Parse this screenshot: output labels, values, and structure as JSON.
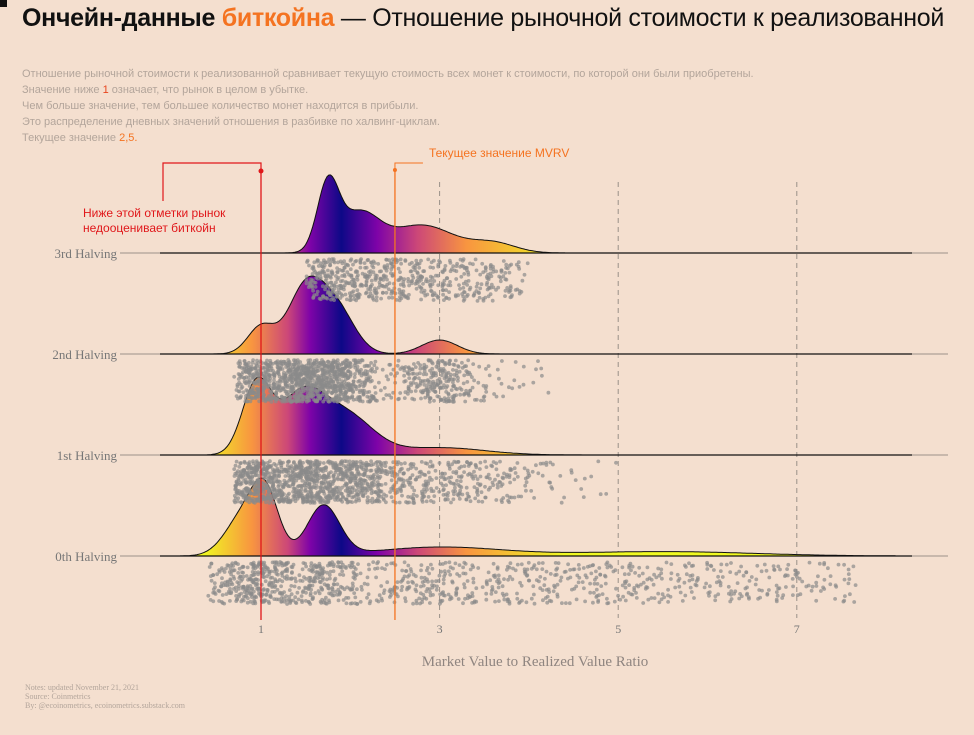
{
  "header": {
    "title_part1": "Ончейн-данные",
    "title_accent": "биткойна",
    "title_rest": "— Отношение рыночной стоимости к реализованной"
  },
  "description": {
    "line1": "Отношение рыночной стоимости к реализованной сравнивает текущую стоимость всех монет к стоимости, по которой они были приобретены.",
    "line2_a": "Значение ниже",
    "line2_hl": "1",
    "line2_b": "означает, что рынок в целом в убытке.",
    "line3": "Чем больше значение, тем большее количество монет находится в прибыли.",
    "line4": "Это распределение дневных значений отношения в разбивке по халвинг-циклам.",
    "line5_a": "Текущее значение",
    "line5_hl": "2,5."
  },
  "footer": {
    "notes": "Notes: updated November 21, 2021",
    "source": "Source: Coinmetrics",
    "by": "By: @ecoinometrics, ecoinometrics.substack.com"
  },
  "colors": {
    "background": "#f4dfcf",
    "red": "#e0171a",
    "orange": "#f47321",
    "dots": "#8a8a8a",
    "gradient": [
      "#f0f921",
      "#f89540",
      "#cc4778",
      "#7e03a8",
      "#0d0887"
    ]
  },
  "chart_data": {
    "type": "ridgeline",
    "xlabel": "Market Value to Realized Value Ratio",
    "xlim": [
      0.45,
      8.2
    ],
    "xticks": [
      1,
      3,
      5,
      7
    ],
    "gridlines_dashed_at": [
      3,
      5,
      7
    ],
    "series": [
      {
        "name": "3rd Halving",
        "x_range": [
          1.5,
          4.0
        ],
        "peaks": [
          {
            "x": 1.75,
            "h": 1.0,
            "s": 0.12
          },
          {
            "x": 2.1,
            "h": 0.58,
            "s": 0.22
          },
          {
            "x": 2.8,
            "h": 0.42,
            "s": 0.35
          },
          {
            "x": 3.6,
            "h": 0.15,
            "s": 0.25
          }
        ],
        "dots": 600
      },
      {
        "name": "2nd Halving",
        "x_range": [
          0.7,
          4.3
        ],
        "peaks": [
          {
            "x": 1.0,
            "h": 0.35,
            "s": 0.15
          },
          {
            "x": 1.5,
            "h": 0.85,
            "s": 0.2
          },
          {
            "x": 1.85,
            "h": 0.55,
            "s": 0.2
          },
          {
            "x": 3.0,
            "h": 0.18,
            "s": 0.2
          }
        ],
        "dots": 1400
      },
      {
        "name": "1st Halving",
        "x_range": [
          0.7,
          5.0
        ],
        "peaks": [
          {
            "x": 0.95,
            "h": 0.75,
            "s": 0.16
          },
          {
            "x": 1.45,
            "h": 0.62,
            "s": 0.25
          },
          {
            "x": 1.95,
            "h": 0.42,
            "s": 0.3
          },
          {
            "x": 3.0,
            "h": 0.08,
            "s": 0.5
          }
        ],
        "dots": 1400
      },
      {
        "name": "0th Halving",
        "x_range": [
          0.4,
          7.7
        ],
        "peaks": [
          {
            "x": 0.8,
            "h": 0.35,
            "s": 0.2
          },
          {
            "x": 1.05,
            "h": 0.52,
            "s": 0.15
          },
          {
            "x": 1.7,
            "h": 0.45,
            "s": 0.18
          },
          {
            "x": 3.0,
            "h": 0.08,
            "s": 0.7
          },
          {
            "x": 5.5,
            "h": 0.04,
            "s": 1.0
          }
        ],
        "dots": 1100
      }
    ],
    "reference_lines": [
      {
        "x": 1,
        "color": "#e0171a",
        "label_line1": "Ниже этой отметки рынок",
        "label_line2": "недооценивает биткойн"
      },
      {
        "x": 2.5,
        "color": "#f47321",
        "label": "Текущее значение MVRV"
      }
    ],
    "current_value": 2.5
  }
}
